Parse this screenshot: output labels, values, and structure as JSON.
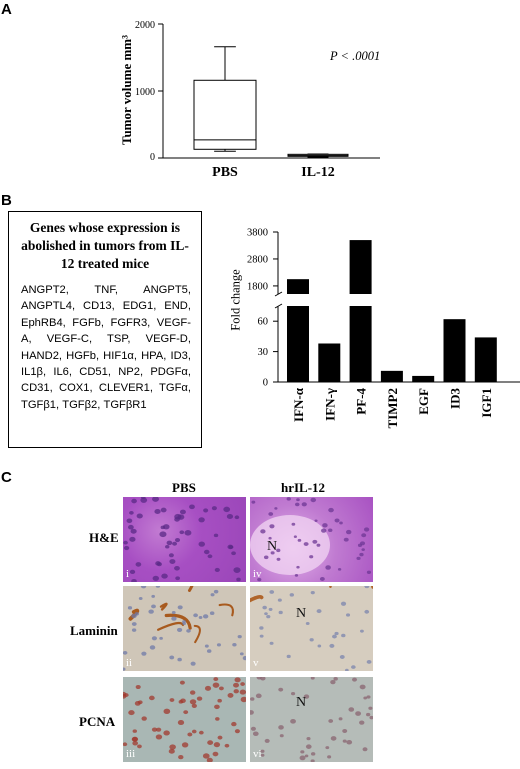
{
  "panel_a": {
    "letter": "A",
    "ylabel": "Tumor volume mm³",
    "pvalue": "P < .0001",
    "yticks": [
      "0",
      "1000",
      "2000"
    ],
    "categories": [
      "PBS",
      "IL-12"
    ]
  },
  "panel_b": {
    "letter": "B",
    "box_title": "Genes whose expression is abolished in tumors from IL-12 treated mice",
    "gene_list": "ANGPT2, TNF, ANGPT5, ANGPTL4, CD13, EDG1, END, EphRB4, FGFb, FGFR3, VEGF-A, VEGF-C, TSP, VEGF-D, HAND2, HGFb, HIF1α, HPA, ID3, IL1β, IL6, CD51, NP2, PDGFα, CD31, COX1, CLEVER1, TGFα, TGFβ1, TGFβ2, TGFβR1",
    "ylabel": "Fold change",
    "yticks_upper": [
      "1800",
      "2800",
      "3800"
    ],
    "yticks_lower": [
      "0",
      "30",
      "60"
    ]
  },
  "panel_c": {
    "letter": "C",
    "col_labels": [
      "PBS",
      "hrIL-12"
    ],
    "row_labels": [
      "H&E",
      "Laminin",
      "PCNA"
    ],
    "numerals": [
      "i",
      "iv",
      "ii",
      "v",
      "iii",
      "vi"
    ],
    "n_mark": "N"
  },
  "chart_data": [
    {
      "type": "box",
      "ylabel": "Tumor volume mm³",
      "ylim": [
        0,
        2000
      ],
      "categories": [
        "PBS",
        "IL-12"
      ],
      "boxes": [
        {
          "name": "PBS",
          "min": 100,
          "q1": 130,
          "median": 270,
          "q3": 1160,
          "max": 1660
        },
        {
          "name": "IL-12",
          "min": 15,
          "q1": 25,
          "median": 40,
          "q3": 55,
          "max": 60
        }
      ],
      "annotation": "P < .0001"
    },
    {
      "type": "bar",
      "ylabel": "Fold change",
      "broken_axis": true,
      "categories": [
        "IFN-α",
        "IFN-γ",
        "PF-4",
        "TIMP2",
        "EGF",
        "ID3",
        "IGF1"
      ],
      "values": [
        2050,
        38,
        3500,
        11,
        6,
        62,
        44
      ]
    }
  ]
}
